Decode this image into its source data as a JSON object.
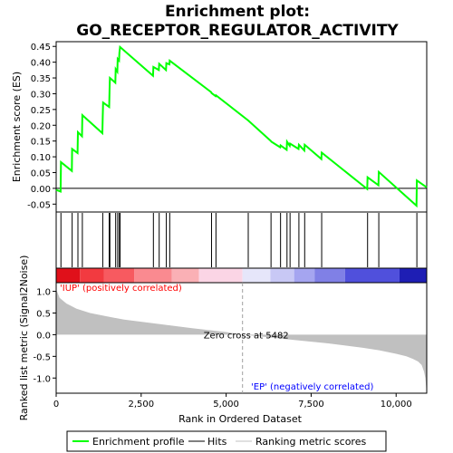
{
  "chart_data": {
    "type": "line",
    "title": "Enrichment plot:\nGO_RECEPTOR_REGULATOR_ACTIVITY",
    "title_lines": [
      "Enrichment plot:",
      "GO_RECEPTOR_REGULATOR_ACTIVITY"
    ],
    "n_genes": 10900,
    "top_panel": {
      "ylabel": "Enrichment score (ES)",
      "ylim": [
        -0.075,
        0.465
      ],
      "yticks": [
        -0.05,
        0.0,
        0.05,
        0.1,
        0.15,
        0.2,
        0.25,
        0.3,
        0.35,
        0.4,
        0.45
      ],
      "ytick_labels": [
        "-0.05",
        "0.00",
        "0.05",
        "0.10",
        "0.15",
        "0.20",
        "0.25",
        "0.30",
        "0.35",
        "0.40",
        "0.45"
      ],
      "series": [
        {
          "name": "Enrichment profile",
          "color": "#00ff00",
          "x": [
            0,
            130,
            140,
            460,
            470,
            630,
            640,
            760,
            770,
            1360,
            1370,
            1380,
            1560,
            1570,
            1580,
            1740,
            1750,
            1800,
            1810,
            1850,
            1860,
            1880,
            2850,
            2860,
            3020,
            3030,
            3230,
            3240,
            3330,
            3340,
            4560,
            4570,
            4690,
            4700,
            5650,
            6320,
            6330,
            6590,
            6600,
            6780,
            6790,
            6870,
            6880,
            7130,
            7140,
            7300,
            7310,
            7800,
            7810,
            9150,
            9160,
            9480,
            9490,
            10600,
            10610,
            10900
          ],
          "y": [
            -0.005,
            -0.01,
            0.083,
            0.055,
            0.125,
            0.112,
            0.178,
            0.165,
            0.232,
            0.175,
            0.228,
            0.272,
            0.258,
            0.31,
            0.35,
            0.335,
            0.378,
            0.37,
            0.41,
            0.405,
            0.43,
            0.448,
            0.357,
            0.385,
            0.375,
            0.395,
            0.375,
            0.397,
            0.393,
            0.405,
            0.305,
            0.302,
            0.292,
            0.295,
            0.215,
            0.15,
            0.148,
            0.13,
            0.136,
            0.122,
            0.148,
            0.135,
            0.142,
            0.125,
            0.138,
            0.12,
            0.138,
            0.093,
            0.113,
            -0.002,
            0.035,
            0.01,
            0.052,
            -0.055,
            0.025,
            0.003
          ]
        }
      ],
      "legend": [
        "Enrichment profile",
        "Hits",
        "Ranking metric scores"
      ],
      "legend_placement": "bottom"
    },
    "hits_panel": {
      "hit_positions": [
        140,
        470,
        640,
        770,
        1370,
        1560,
        1580,
        1750,
        1810,
        1860,
        1880,
        2860,
        3030,
        3240,
        3340,
        4570,
        4700,
        5650,
        6320,
        6600,
        6790,
        6880,
        7140,
        7310,
        7810,
        9160,
        9490,
        10610
      ]
    },
    "heat_bar": {
      "segments": [
        {
          "from": 0,
          "to": 700,
          "color": "#e0101a"
        },
        {
          "from": 700,
          "to": 1400,
          "color": "#f23a40"
        },
        {
          "from": 1400,
          "to": 2300,
          "color": "#f75a60"
        },
        {
          "from": 2300,
          "to": 3400,
          "color": "#fa8a90"
        },
        {
          "from": 3400,
          "to": 4200,
          "color": "#fab0b5"
        },
        {
          "from": 4200,
          "to": 5480,
          "color": "#fbd5e5"
        },
        {
          "from": 5480,
          "to": 6300,
          "color": "#e6e6fa"
        },
        {
          "from": 6300,
          "to": 7000,
          "color": "#c8c8f5"
        },
        {
          "from": 7000,
          "to": 7600,
          "color": "#a5a5f0"
        },
        {
          "from": 7600,
          "to": 8500,
          "color": "#8080e6"
        },
        {
          "from": 8500,
          "to": 10100,
          "color": "#5050dc"
        },
        {
          "from": 10100,
          "to": 10900,
          "color": "#1e1eb4"
        }
      ]
    },
    "bottom_panel": {
      "ylabel": "Ranked list metric (Signal2Noise)",
      "xlabel": "Rank in Ordered Dataset",
      "ylim": [
        -1.35,
        1.2
      ],
      "yticks": [
        -1.0,
        -0.5,
        0.0,
        0.5,
        1.0
      ],
      "ytick_labels": [
        "-1.0",
        "-0.5",
        "0.0",
        "0.5",
        "1.0"
      ],
      "xticks": [
        0,
        2500,
        5000,
        7500,
        10000
      ],
      "xtick_labels": [
        "0",
        "2,500",
        "5,000",
        "7,500",
        "10,000"
      ],
      "metric_color": "#c0c0c0",
      "metric_x": [
        0,
        100,
        300,
        600,
        1000,
        1500,
        2000,
        3000,
        4000,
        5000,
        5482,
        6000,
        7000,
        8000,
        9000,
        9500,
        10000,
        10300,
        10500,
        10650,
        10750,
        10820,
        10860,
        10900
      ],
      "metric_y": [
        1.05,
        0.85,
        0.72,
        0.6,
        0.5,
        0.42,
        0.35,
        0.25,
        0.15,
        0.06,
        0.0,
        -0.04,
        -0.12,
        -0.2,
        -0.3,
        -0.36,
        -0.44,
        -0.5,
        -0.56,
        -0.62,
        -0.7,
        -0.85,
        -1.0,
        -1.35
      ],
      "zero_cross": 5482,
      "zero_cross_label": "Zero cross at 5482",
      "pos_label": "'IUP' (positively correlated)",
      "neg_label": "'EP' (negatively correlated)",
      "pos_color": "#ff0000",
      "neg_color": "#0000ff"
    }
  }
}
